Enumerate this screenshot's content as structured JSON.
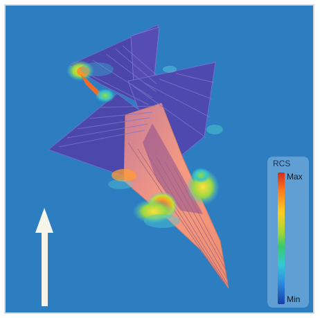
{
  "legend": {
    "title": "RCS",
    "max_label": "Max",
    "min_label": "Min"
  },
  "colors": {
    "background": "#2d7ec1",
    "aircraft_body": "#4b48a8",
    "hotspot_red": "#d42a1e",
    "hotspot_orange": "#ff7d1d",
    "hotspot_yellow": "#ffcd1f",
    "hotspot_green": "#38c96b",
    "hotspot_cyan": "#34c8d4",
    "arrow": "#f7f4ea"
  }
}
